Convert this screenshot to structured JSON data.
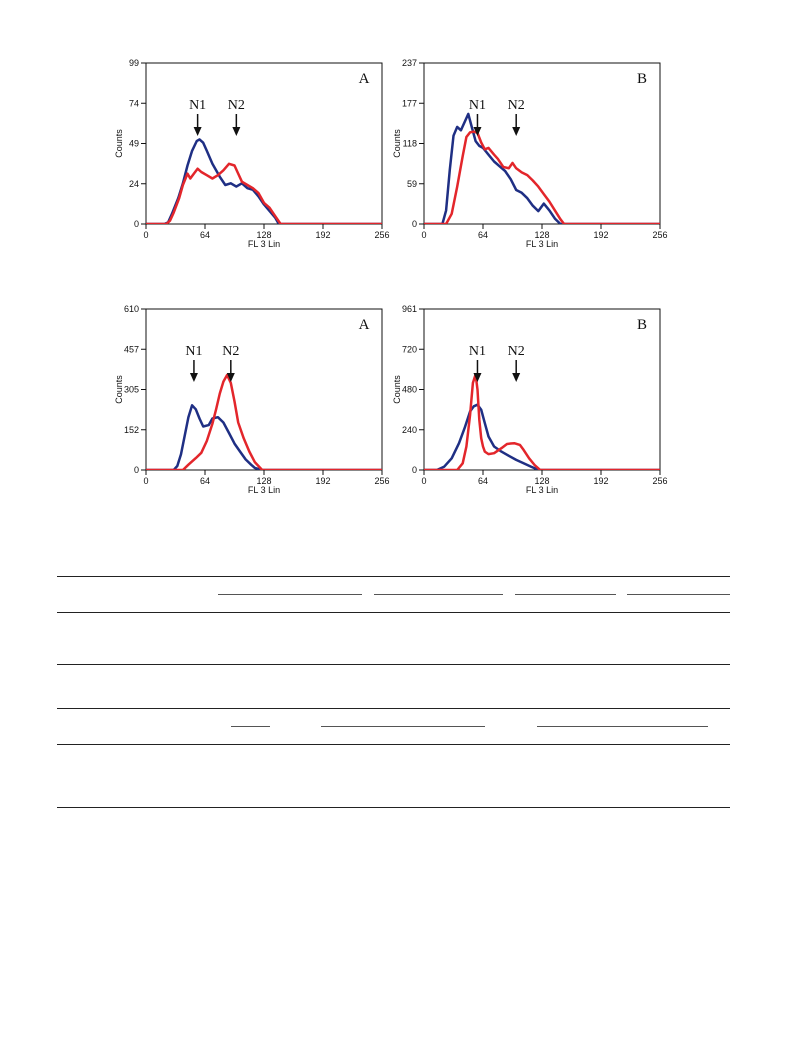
{
  "colors": {
    "blue": "#1f2f84",
    "red": "#e3262b",
    "axis": "#111111"
  },
  "chart_data": [
    {
      "type": "line",
      "panel": "A",
      "xlabel": "FL 3 Lin",
      "ylabel": "Counts",
      "xlim": [
        0,
        256
      ],
      "ylim": [
        0,
        99
      ],
      "xticks": [
        "0",
        "64",
        "128",
        "192",
        "256"
      ],
      "yticks": [
        "0",
        "24",
        "49",
        "74",
        "99"
      ],
      "annotations": [
        {
          "label": "N1",
          "x": 56
        },
        {
          "label": "N2",
          "x": 98
        }
      ],
      "series": [
        {
          "color": "blue",
          "x": [
            0,
            20,
            24,
            28,
            35,
            40,
            45,
            50,
            55,
            58,
            62,
            66,
            72,
            80,
            86,
            92,
            98,
            104,
            110,
            116,
            122,
            128,
            134,
            140,
            144,
            256
          ],
          "y": [
            0,
            0,
            1,
            6,
            16,
            25,
            36,
            45,
            51,
            52,
            50,
            45,
            37,
            29,
            24,
            25,
            23,
            25,
            22,
            21,
            17,
            12,
            8,
            4,
            0,
            0
          ]
        },
        {
          "color": "red",
          "x": [
            0,
            22,
            26,
            30,
            36,
            40,
            45,
            48,
            52,
            56,
            60,
            66,
            72,
            78,
            84,
            90,
            96,
            100,
            104,
            110,
            116,
            122,
            128,
            134,
            140,
            146,
            256
          ],
          "y": [
            0,
            0,
            2,
            7,
            16,
            24,
            31,
            28,
            31,
            34,
            32,
            30,
            28,
            30,
            33,
            37,
            36,
            31,
            26,
            24,
            22,
            19,
            13,
            10,
            5,
            0,
            0
          ]
        }
      ]
    },
    {
      "type": "line",
      "panel": "B",
      "xlabel": "FL 3 Lin",
      "ylabel": "Counts",
      "xlim": [
        0,
        256
      ],
      "ylim": [
        0,
        237
      ],
      "xticks": [
        "0",
        "64",
        "128",
        "192",
        "256"
      ],
      "yticks": [
        "0",
        "59",
        "118",
        "177",
        "237"
      ],
      "annotations": [
        {
          "label": "N1",
          "x": 58
        },
        {
          "label": "N2",
          "x": 100
        }
      ],
      "series": [
        {
          "color": "blue",
          "x": [
            0,
            20,
            24,
            28,
            32,
            36,
            40,
            44,
            48,
            52,
            56,
            60,
            64,
            70,
            76,
            82,
            88,
            94,
            100,
            106,
            112,
            118,
            124,
            130,
            136,
            142,
            148,
            256
          ],
          "y": [
            0,
            0,
            20,
            80,
            130,
            143,
            138,
            150,
            162,
            142,
            122,
            115,
            112,
            102,
            92,
            85,
            78,
            66,
            50,
            46,
            38,
            27,
            19,
            30,
            20,
            8,
            0,
            0
          ]
        },
        {
          "color": "red",
          "x": [
            0,
            24,
            30,
            36,
            42,
            46,
            50,
            54,
            58,
            62,
            66,
            70,
            76,
            80,
            86,
            92,
            96,
            100,
            106,
            112,
            118,
            124,
            130,
            136,
            142,
            148,
            152,
            256
          ],
          "y": [
            0,
            0,
            15,
            55,
            100,
            128,
            135,
            136,
            134,
            120,
            110,
            112,
            102,
            96,
            84,
            82,
            90,
            82,
            76,
            72,
            64,
            55,
            44,
            33,
            20,
            7,
            0,
            0
          ]
        }
      ]
    },
    {
      "type": "line",
      "panel": "A",
      "xlabel": "FL 3 Lin",
      "ylabel": "Counts",
      "xlim": [
        0,
        256
      ],
      "ylim": [
        0,
        610
      ],
      "xticks": [
        "0",
        "64",
        "128",
        "192",
        "256"
      ],
      "yticks": [
        "0",
        "152",
        "305",
        "457",
        "610"
      ],
      "annotations": [
        {
          "label": "N1",
          "x": 52
        },
        {
          "label": "N2",
          "x": 92
        }
      ],
      "series": [
        {
          "color": "blue",
          "x": [
            0,
            30,
            34,
            38,
            42,
            46,
            50,
            54,
            58,
            62,
            68,
            72,
            78,
            84,
            90,
            96,
            102,
            108,
            114,
            118,
            126,
            256
          ],
          "y": [
            0,
            0,
            15,
            60,
            130,
            200,
            245,
            230,
            195,
            165,
            170,
            195,
            200,
            180,
            140,
            100,
            70,
            40,
            20,
            8,
            0,
            0
          ]
        },
        {
          "color": "red",
          "x": [
            0,
            40,
            46,
            54,
            60,
            66,
            72,
            76,
            80,
            84,
            88,
            92,
            96,
            100,
            106,
            112,
            118,
            126,
            256
          ],
          "y": [
            0,
            0,
            20,
            45,
            65,
            110,
            175,
            230,
            290,
            335,
            360,
            330,
            260,
            180,
            120,
            70,
            30,
            0,
            0
          ]
        }
      ]
    },
    {
      "type": "line",
      "panel": "B",
      "xlabel": "FL 3 Lin",
      "ylabel": "Counts",
      "xlim": [
        0,
        256
      ],
      "ylim": [
        0,
        961
      ],
      "xticks": [
        "0",
        "64",
        "128",
        "192",
        "256"
      ],
      "yticks": [
        "0",
        "240",
        "480",
        "720",
        "961"
      ],
      "annotations": [
        {
          "label": "N1",
          "x": 58
        },
        {
          "label": "N2",
          "x": 100
        }
      ],
      "series": [
        {
          "color": "blue",
          "x": [
            0,
            14,
            22,
            30,
            38,
            44,
            50,
            54,
            58,
            62,
            66,
            70,
            76,
            84,
            92,
            100,
            108,
            116,
            122,
            126,
            256
          ],
          "y": [
            0,
            0,
            20,
            70,
            160,
            250,
            350,
            380,
            390,
            360,
            280,
            200,
            140,
            110,
            85,
            60,
            40,
            20,
            6,
            0,
            0
          ]
        },
        {
          "color": "red",
          "x": [
            0,
            36,
            42,
            46,
            50,
            53,
            56,
            58,
            60,
            62,
            64,
            66,
            70,
            76,
            84,
            90,
            94,
            98,
            104,
            108,
            114,
            120,
            126,
            256
          ],
          "y": [
            0,
            0,
            40,
            140,
            330,
            520,
            570,
            480,
            300,
            190,
            140,
            110,
            95,
            100,
            130,
            155,
            158,
            160,
            150,
            120,
            70,
            30,
            0,
            0
          ]
        }
      ]
    }
  ]
}
